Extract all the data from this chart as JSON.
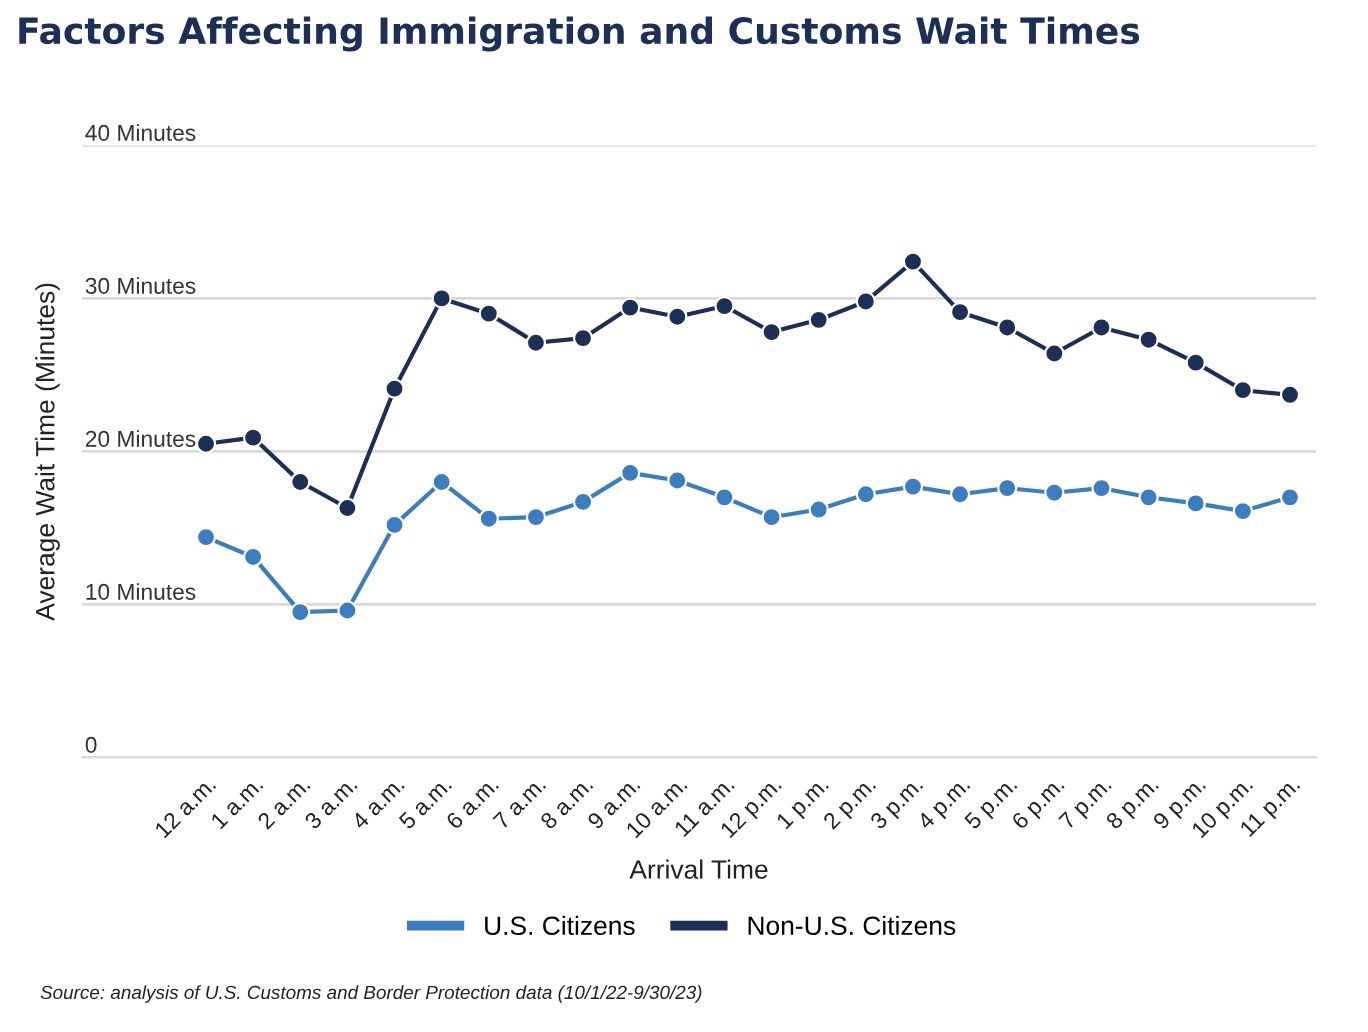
{
  "chart_data": {
    "type": "line",
    "title": "Factors Affecting Immigration and Customs Wait Times",
    "xlabel": "Arrival Time",
    "ylabel": "Average Wait Time (Minutes)",
    "categories": [
      "12 a.m.",
      "1 a.m.",
      "2 a.m.",
      "3 a.m.",
      "4 a.m.",
      "5 a.m.",
      "6 a.m.",
      "7 a.m.",
      "8 a.m.",
      "9 a.m.",
      "10 a.m.",
      "11 a.m.",
      "12 p.m.",
      "1 p.m.",
      "2 p.m.",
      "3 p.m.",
      "4 p.m.",
      "5 p.m.",
      "6 p.m.",
      "7 p.m.",
      "8 p.m.",
      "9 p.m.",
      "10 p.m.",
      "11 p.m."
    ],
    "series": [
      {
        "name": "U.S. Citizens",
        "color": "#3a7dc0",
        "values": [
          14.4,
          13.1,
          9.5,
          9.6,
          15.2,
          18.0,
          15.6,
          15.7,
          16.7,
          18.6,
          18.1,
          17.0,
          15.7,
          16.2,
          17.2,
          17.7,
          17.2,
          17.6,
          17.3,
          17.6,
          17.0,
          16.6,
          16.1,
          17.0
        ]
      },
      {
        "name": "Non-U.S. Citizens",
        "color": "#1b2f57",
        "values": [
          20.5,
          20.9,
          18.0,
          16.3,
          24.1,
          30.0,
          29.0,
          27.1,
          27.4,
          29.4,
          28.8,
          29.5,
          27.8,
          28.6,
          29.8,
          32.4,
          29.1,
          28.1,
          26.4,
          28.1,
          27.3,
          25.8,
          24.0,
          23.7
        ]
      }
    ],
    "ylim": [
      0,
      40
    ],
    "yticks": [
      0,
      {
        "value": 10,
        "label": "10 Minutes"
      },
      {
        "value": 20,
        "label": "20 Minutes"
      },
      {
        "value": 30,
        "label": "30 Minutes"
      },
      {
        "value": 40,
        "label": "40 Minutes"
      }
    ],
    "grid": "y",
    "legend": "bottom",
    "marker": "circle",
    "line_style": "solid",
    "annotations": [
      "Source: analysis of U.S. Customs and Border Protection data (10/1/22-9/30/23)"
    ]
  }
}
